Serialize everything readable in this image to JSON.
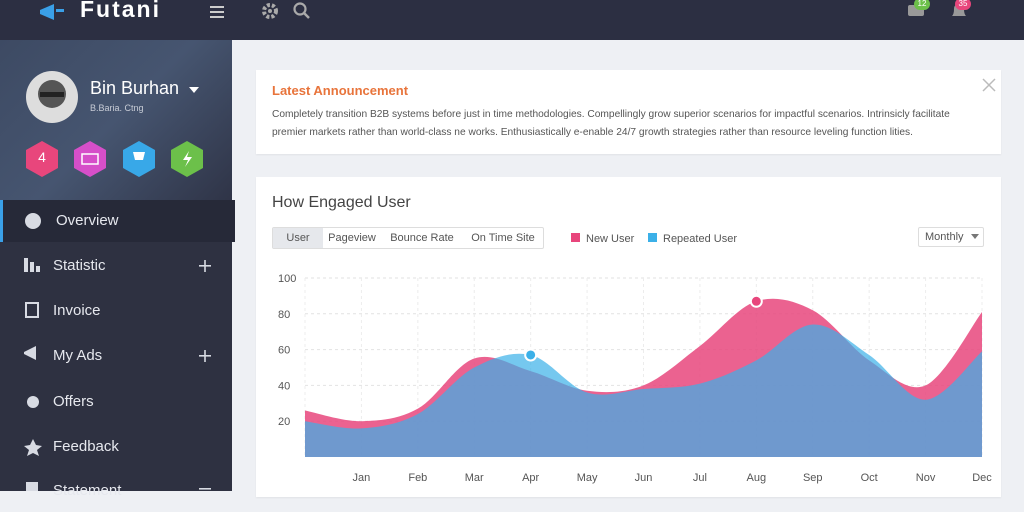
{
  "header": {
    "logo": "Futani",
    "message_badge": "12",
    "notification_badge": "35"
  },
  "sidebar": {
    "user_name": "Bin Burhan",
    "user_location": "B.Baria. Ctng",
    "level_badge": "4",
    "menu": [
      "Overview",
      "Statistic",
      "Invoice",
      "My Ads",
      "Offers",
      "Feedback",
      "Statement"
    ]
  },
  "announcement": {
    "title": "Latest Announcement",
    "text": "Completely transition B2B systems before just in time methodologies. Compellingly grow superior scenarios for impactful scenarios. Intrinsicly facilitate premier markets rather than world-class ne works. Enthusiastically e-enable 24/7 growth strategies rather than resource leveling function lities."
  },
  "chart_controls": {
    "tabs": [
      "User",
      "Pageview",
      "Bounce Rate",
      "On Time Site"
    ],
    "period": "Monthly"
  },
  "chart_data": {
    "type": "area",
    "title": "How Engaged User",
    "categories": [
      null,
      "Jan",
      "Feb",
      "Mar",
      "Apr",
      "May",
      "Jun",
      "Jul",
      "Aug",
      "Sep",
      "Oct",
      "Nov",
      "Dec"
    ],
    "series": [
      {
        "name": "New User",
        "color": "#e8467c",
        "values": [
          26,
          20,
          27,
          55,
          48,
          37,
          40,
          62,
          87,
          82,
          54,
          40,
          81
        ],
        "highlight": 8
      },
      {
        "name": "Repeated User",
        "color": "#3bb0e8",
        "values": [
          20,
          16,
          24,
          50,
          57,
          36,
          38,
          41,
          54,
          74,
          57,
          32,
          59
        ],
        "highlight": 4
      }
    ],
    "ylim": [
      0,
      100
    ],
    "yticks": [
      20,
      40,
      60,
      80,
      100
    ],
    "grid": true
  }
}
